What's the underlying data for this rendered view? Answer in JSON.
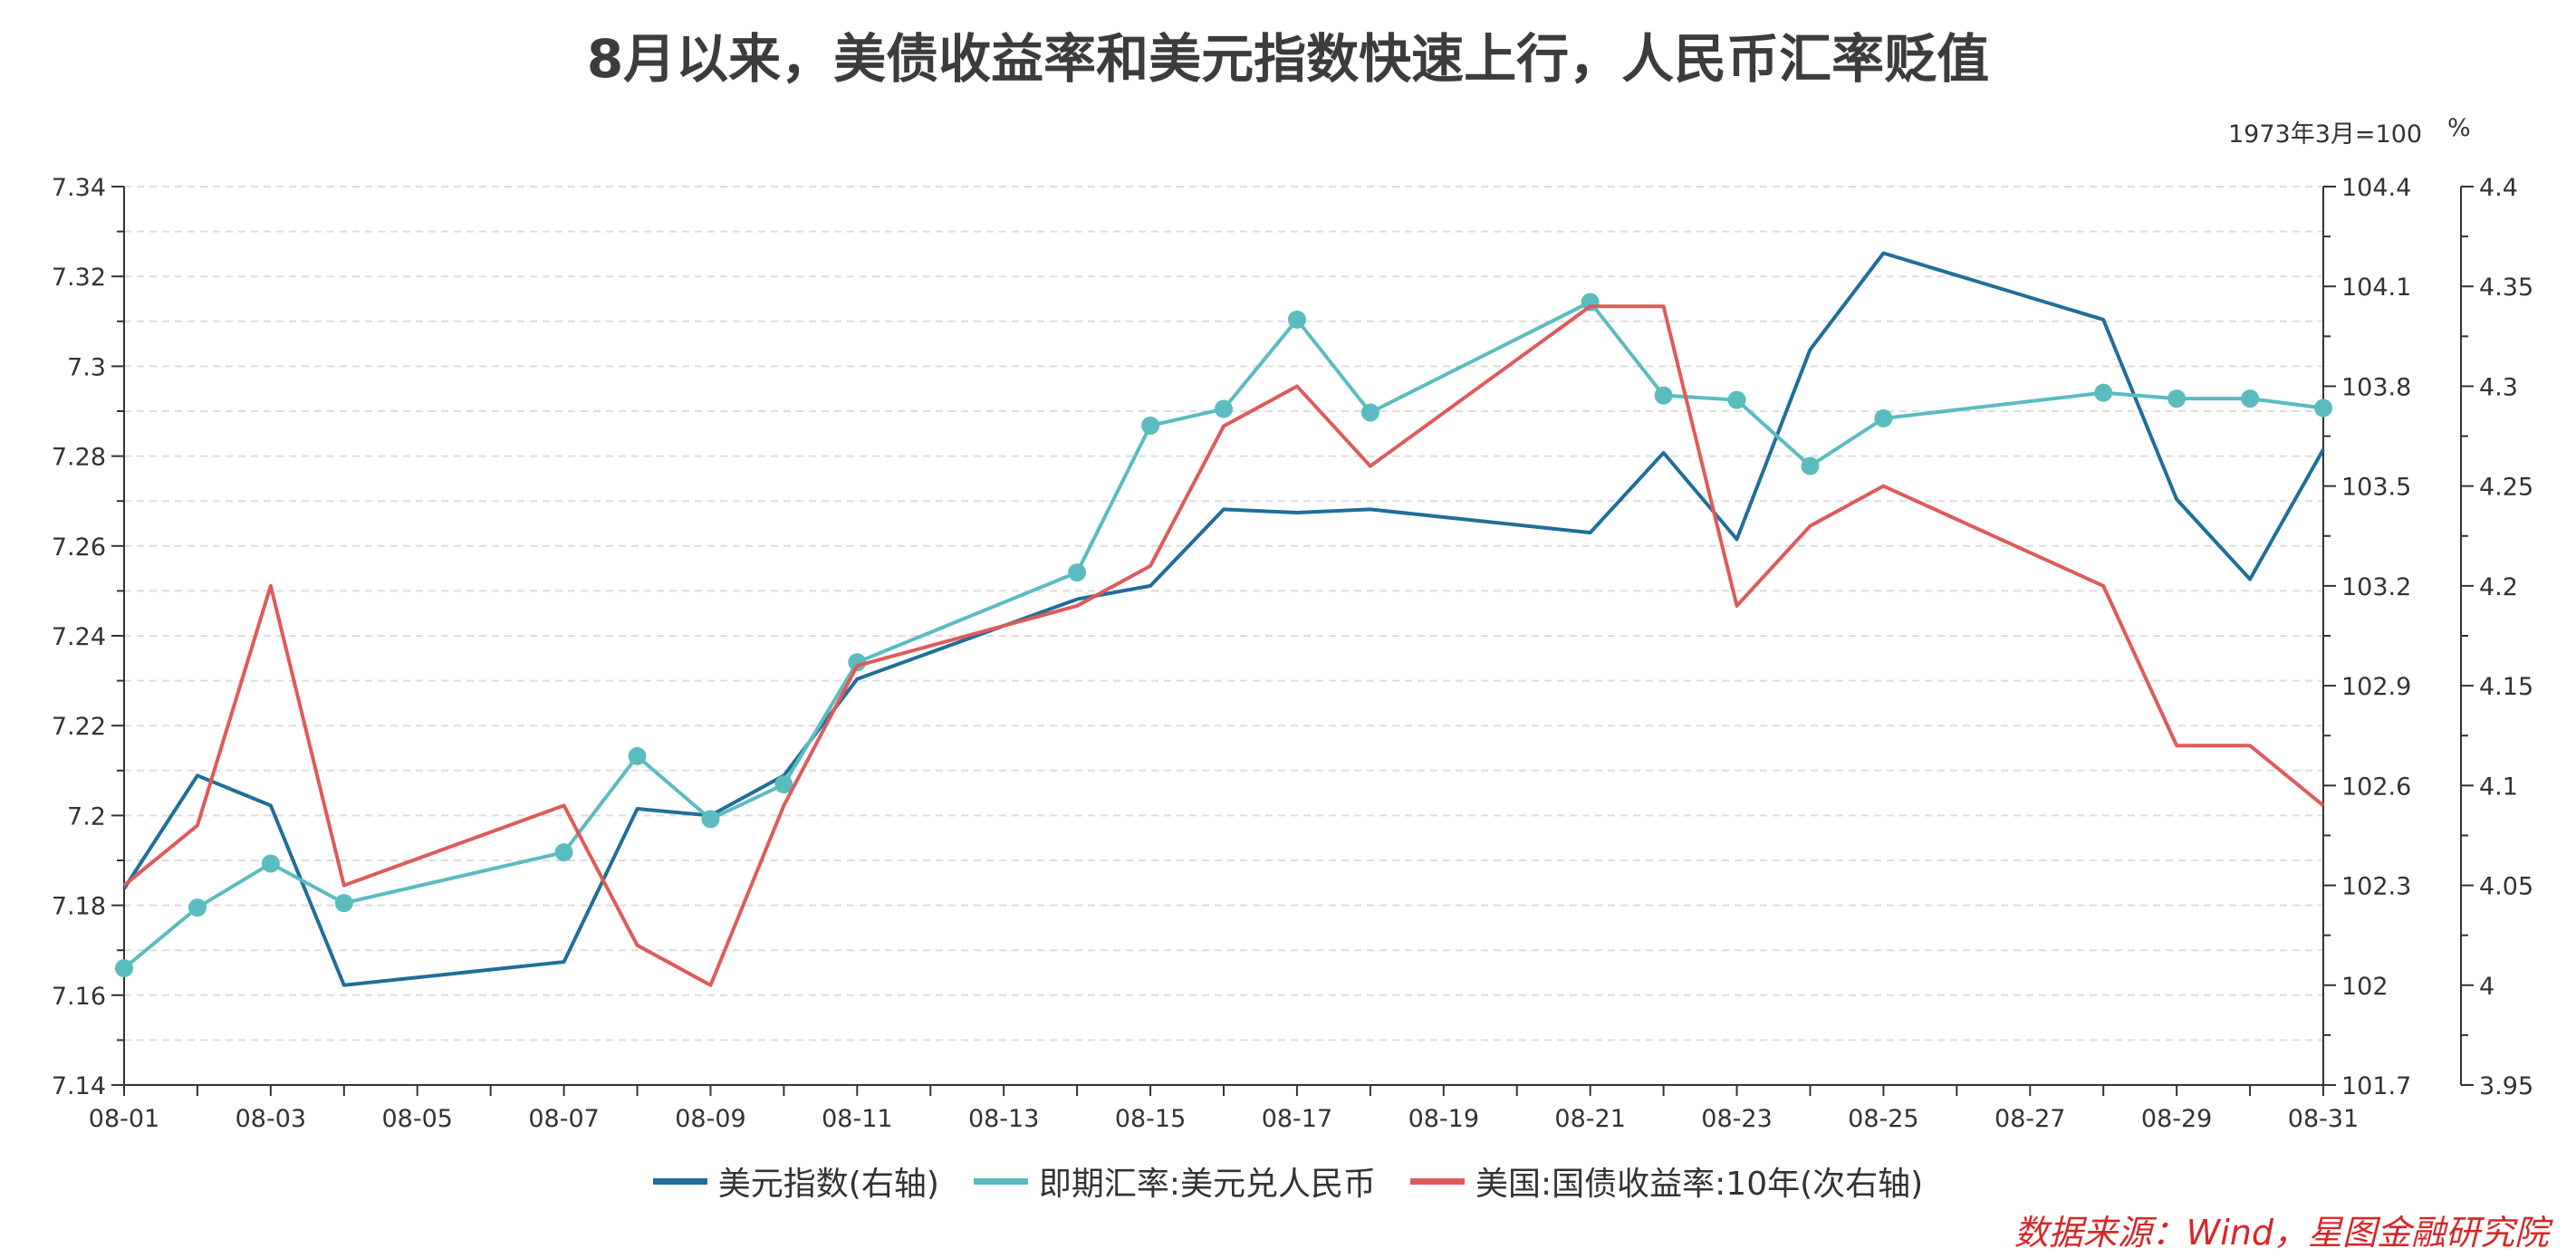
{
  "chart_data": {
    "type": "line",
    "title": "8月以来，美债收益率和美元指数快速上行，人民币汇率贬值",
    "x": [
      "08-01",
      "08-02",
      "08-03",
      "08-04",
      "08-07",
      "08-08",
      "08-09",
      "08-10",
      "08-11",
      "08-14",
      "08-15",
      "08-16",
      "08-17",
      "08-18",
      "08-21",
      "08-22",
      "08-23",
      "08-24",
      "08-25",
      "08-28",
      "08-29",
      "08-30",
      "08-31"
    ],
    "x_ticks": [
      "08-01",
      "08-03",
      "08-05",
      "08-07",
      "08-09",
      "08-11",
      "08-13",
      "08-15",
      "08-17",
      "08-19",
      "08-21",
      "08-23",
      "08-25",
      "08-27",
      "08-29",
      "08-31"
    ],
    "axes": {
      "left": {
        "ylim": [
          7.14,
          7.34
        ],
        "ticks": [
          "7.14",
          "7.16",
          "7.18",
          "7.2",
          "7.22",
          "7.24",
          "7.26",
          "7.28",
          "7.3",
          "7.32",
          "7.34"
        ]
      },
      "right": {
        "ylim": [
          101.7,
          104.4
        ],
        "unit": "1973年3月=100",
        "ticks": [
          "101.7",
          "102",
          "102.3",
          "102.6",
          "102.9",
          "103.2",
          "103.5",
          "103.8",
          "104.1",
          "104.4"
        ]
      },
      "secondary_right": {
        "ylim": [
          3.95,
          4.4
        ],
        "unit": "%",
        "ticks": [
          "3.95",
          "4",
          "4.05",
          "4.1",
          "4.15",
          "4.2",
          "4.25",
          "4.3",
          "4.35",
          "4.4"
        ]
      }
    },
    "grid": true,
    "legend_position": "bottom",
    "series": [
      {
        "name": "美元指数(右轴)",
        "axis": "right",
        "color": "#1f6f99",
        "markers": false,
        "values": [
          102.29,
          102.63,
          102.54,
          102.0,
          102.07,
          102.53,
          102.51,
          102.63,
          102.92,
          103.16,
          103.2,
          103.43,
          103.42,
          103.43,
          103.36,
          103.6,
          103.34,
          103.91,
          104.2,
          104.0,
          103.46,
          103.22,
          103.61
        ]
      },
      {
        "name": "即期汇率:美元兑人民币",
        "axis": "left",
        "color": "#5bbcbf",
        "markers": true,
        "values": [
          7.166,
          7.1795,
          7.1893,
          7.1805,
          7.1918,
          7.2132,
          7.1992,
          7.2069,
          7.2341,
          7.2541,
          7.2868,
          7.2905,
          7.3104,
          7.2897,
          7.3143,
          7.2935,
          7.2925,
          7.2778,
          7.2884,
          7.2941,
          7.2928,
          7.2928,
          7.2907
        ]
      },
      {
        "name": "美国:国债收益率:10年(次右轴)",
        "axis": "secondary_right",
        "color": "#e05a5a",
        "markers": false,
        "values": [
          4.05,
          4.08,
          4.2,
          4.05,
          4.09,
          4.02,
          4.0,
          4.09,
          4.16,
          4.19,
          4.21,
          4.28,
          4.3,
          4.26,
          4.34,
          4.34,
          4.19,
          4.23,
          4.25,
          4.2,
          4.12,
          4.12,
          4.09
        ]
      }
    ],
    "source": "数据来源：Wind，星图金融研究院"
  }
}
